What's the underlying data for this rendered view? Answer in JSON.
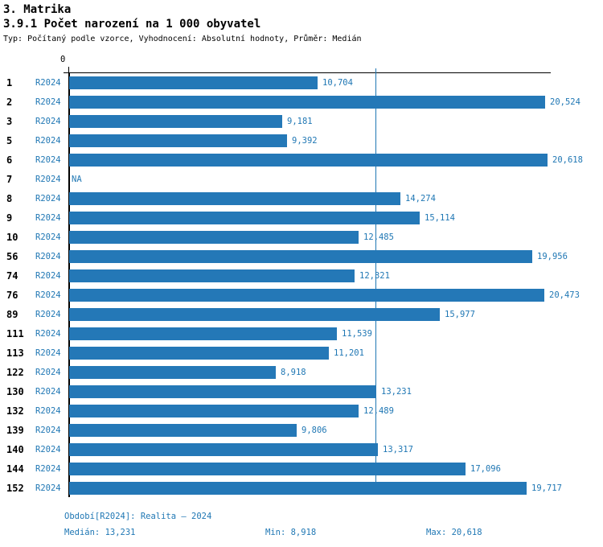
{
  "header": {
    "title": "3. Matrika",
    "subtitle": "3.9.1 Počet narození na 1 000 obyvatel",
    "meta": "Typ: Počítaný podle vzorce, Vyhodnocení: Absolutní hodnoty, Průměr: Medián"
  },
  "chart_data": {
    "type": "bar",
    "orientation": "horizontal",
    "title": "3.9.1 Počet narození na 1 000 obyvatel",
    "value_axis": {
      "min_label": "0",
      "range": [
        0,
        20800
      ],
      "gridlines": false,
      "median_line_value": 13231
    },
    "categories": [
      "1",
      "2",
      "3",
      "5",
      "6",
      "7",
      "8",
      "9",
      "10",
      "56",
      "74",
      "76",
      "89",
      "111",
      "113",
      "122",
      "130",
      "132",
      "139",
      "140",
      "144",
      "152"
    ],
    "series": [
      {
        "name": "R2024",
        "values": [
          10704,
          20524,
          9181,
          9392,
          20618,
          null,
          14274,
          15114,
          12485,
          19956,
          12321,
          20473,
          15977,
          11539,
          11201,
          8918,
          13231,
          12489,
          9806,
          13317,
          17096,
          19717
        ]
      }
    ],
    "rows": [
      {
        "id": "1",
        "tag": "R2024",
        "value": 10704,
        "label": "10,704"
      },
      {
        "id": "2",
        "tag": "R2024",
        "value": 20524,
        "label": "20,524"
      },
      {
        "id": "3",
        "tag": "R2024",
        "value": 9181,
        "label": "9,181"
      },
      {
        "id": "5",
        "tag": "R2024",
        "value": 9392,
        "label": "9,392"
      },
      {
        "id": "6",
        "tag": "R2024",
        "value": 20618,
        "label": "20,618"
      },
      {
        "id": "7",
        "tag": "R2024",
        "value": null,
        "label": "NA"
      },
      {
        "id": "8",
        "tag": "R2024",
        "value": 14274,
        "label": "14,274"
      },
      {
        "id": "9",
        "tag": "R2024",
        "value": 15114,
        "label": "15,114"
      },
      {
        "id": "10",
        "tag": "R2024",
        "value": 12485,
        "label": "12,485"
      },
      {
        "id": "56",
        "tag": "R2024",
        "value": 19956,
        "label": "19,956"
      },
      {
        "id": "74",
        "tag": "R2024",
        "value": 12321,
        "label": "12,321"
      },
      {
        "id": "76",
        "tag": "R2024",
        "value": 20473,
        "label": "20,473"
      },
      {
        "id": "89",
        "tag": "R2024",
        "value": 15977,
        "label": "15,977"
      },
      {
        "id": "111",
        "tag": "R2024",
        "value": 11539,
        "label": "11,539"
      },
      {
        "id": "113",
        "tag": "R2024",
        "value": 11201,
        "label": "11,201"
      },
      {
        "id": "122",
        "tag": "R2024",
        "value": 8918,
        "label": "8,918"
      },
      {
        "id": "130",
        "tag": "R2024",
        "value": 13231,
        "label": "13,231"
      },
      {
        "id": "132",
        "tag": "R2024",
        "value": 12489,
        "label": "12,489"
      },
      {
        "id": "139",
        "tag": "R2024",
        "value": 9806,
        "label": "9,806"
      },
      {
        "id": "140",
        "tag": "R2024",
        "value": 13317,
        "label": "13,317"
      },
      {
        "id": "144",
        "tag": "R2024",
        "value": 17096,
        "label": "17,096"
      },
      {
        "id": "152",
        "tag": "R2024",
        "value": 19717,
        "label": "19,717"
      }
    ],
    "legend_position": "none"
  },
  "footer": {
    "period": "Období[R2024]: Realita – 2024",
    "median": "Medián: 13,231",
    "min": "Min: 8,918",
    "max": "Max: 20,618"
  },
  "colors": {
    "bar": "#2478b7",
    "accent_text": "#1f77b4",
    "axis": "#000000"
  }
}
